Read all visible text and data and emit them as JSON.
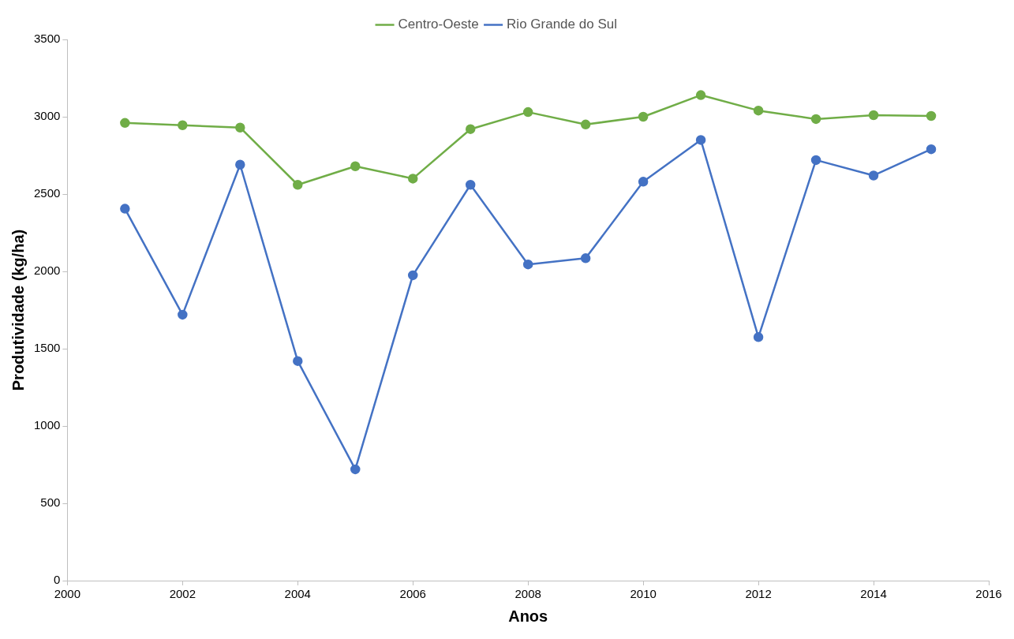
{
  "chart_data": {
    "type": "line",
    "xlabel": "Anos",
    "ylabel": "Produtividade (kg/ha)",
    "x": [
      2001,
      2002,
      2003,
      2004,
      2005,
      2006,
      2007,
      2008,
      2009,
      2010,
      2011,
      2012,
      2013,
      2014,
      2015
    ],
    "series": [
      {
        "name": "Centro-Oeste",
        "color": "#70ad47",
        "values": [
          2960,
          2945,
          2930,
          2560,
          2680,
          2600,
          2920,
          3030,
          2950,
          3000,
          3140,
          3040,
          2985,
          3010,
          3005
        ]
      },
      {
        "name": "Rio Grande do Sul",
        "color": "#4472c4",
        "values": [
          2405,
          1720,
          2690,
          1420,
          720,
          1975,
          2560,
          2045,
          2085,
          2580,
          2850,
          1575,
          2720,
          2620,
          2790
        ]
      }
    ],
    "xlim": [
      2000,
      2016
    ],
    "xticks": [
      2000,
      2002,
      2004,
      2006,
      2008,
      2010,
      2012,
      2014,
      2016
    ],
    "ylim": [
      0,
      3500
    ],
    "yticks": [
      0,
      500,
      1000,
      1500,
      2000,
      2500,
      3000,
      3500
    ],
    "grid": false,
    "legend": "top",
    "marker": "circle",
    "line_style": "solid"
  }
}
